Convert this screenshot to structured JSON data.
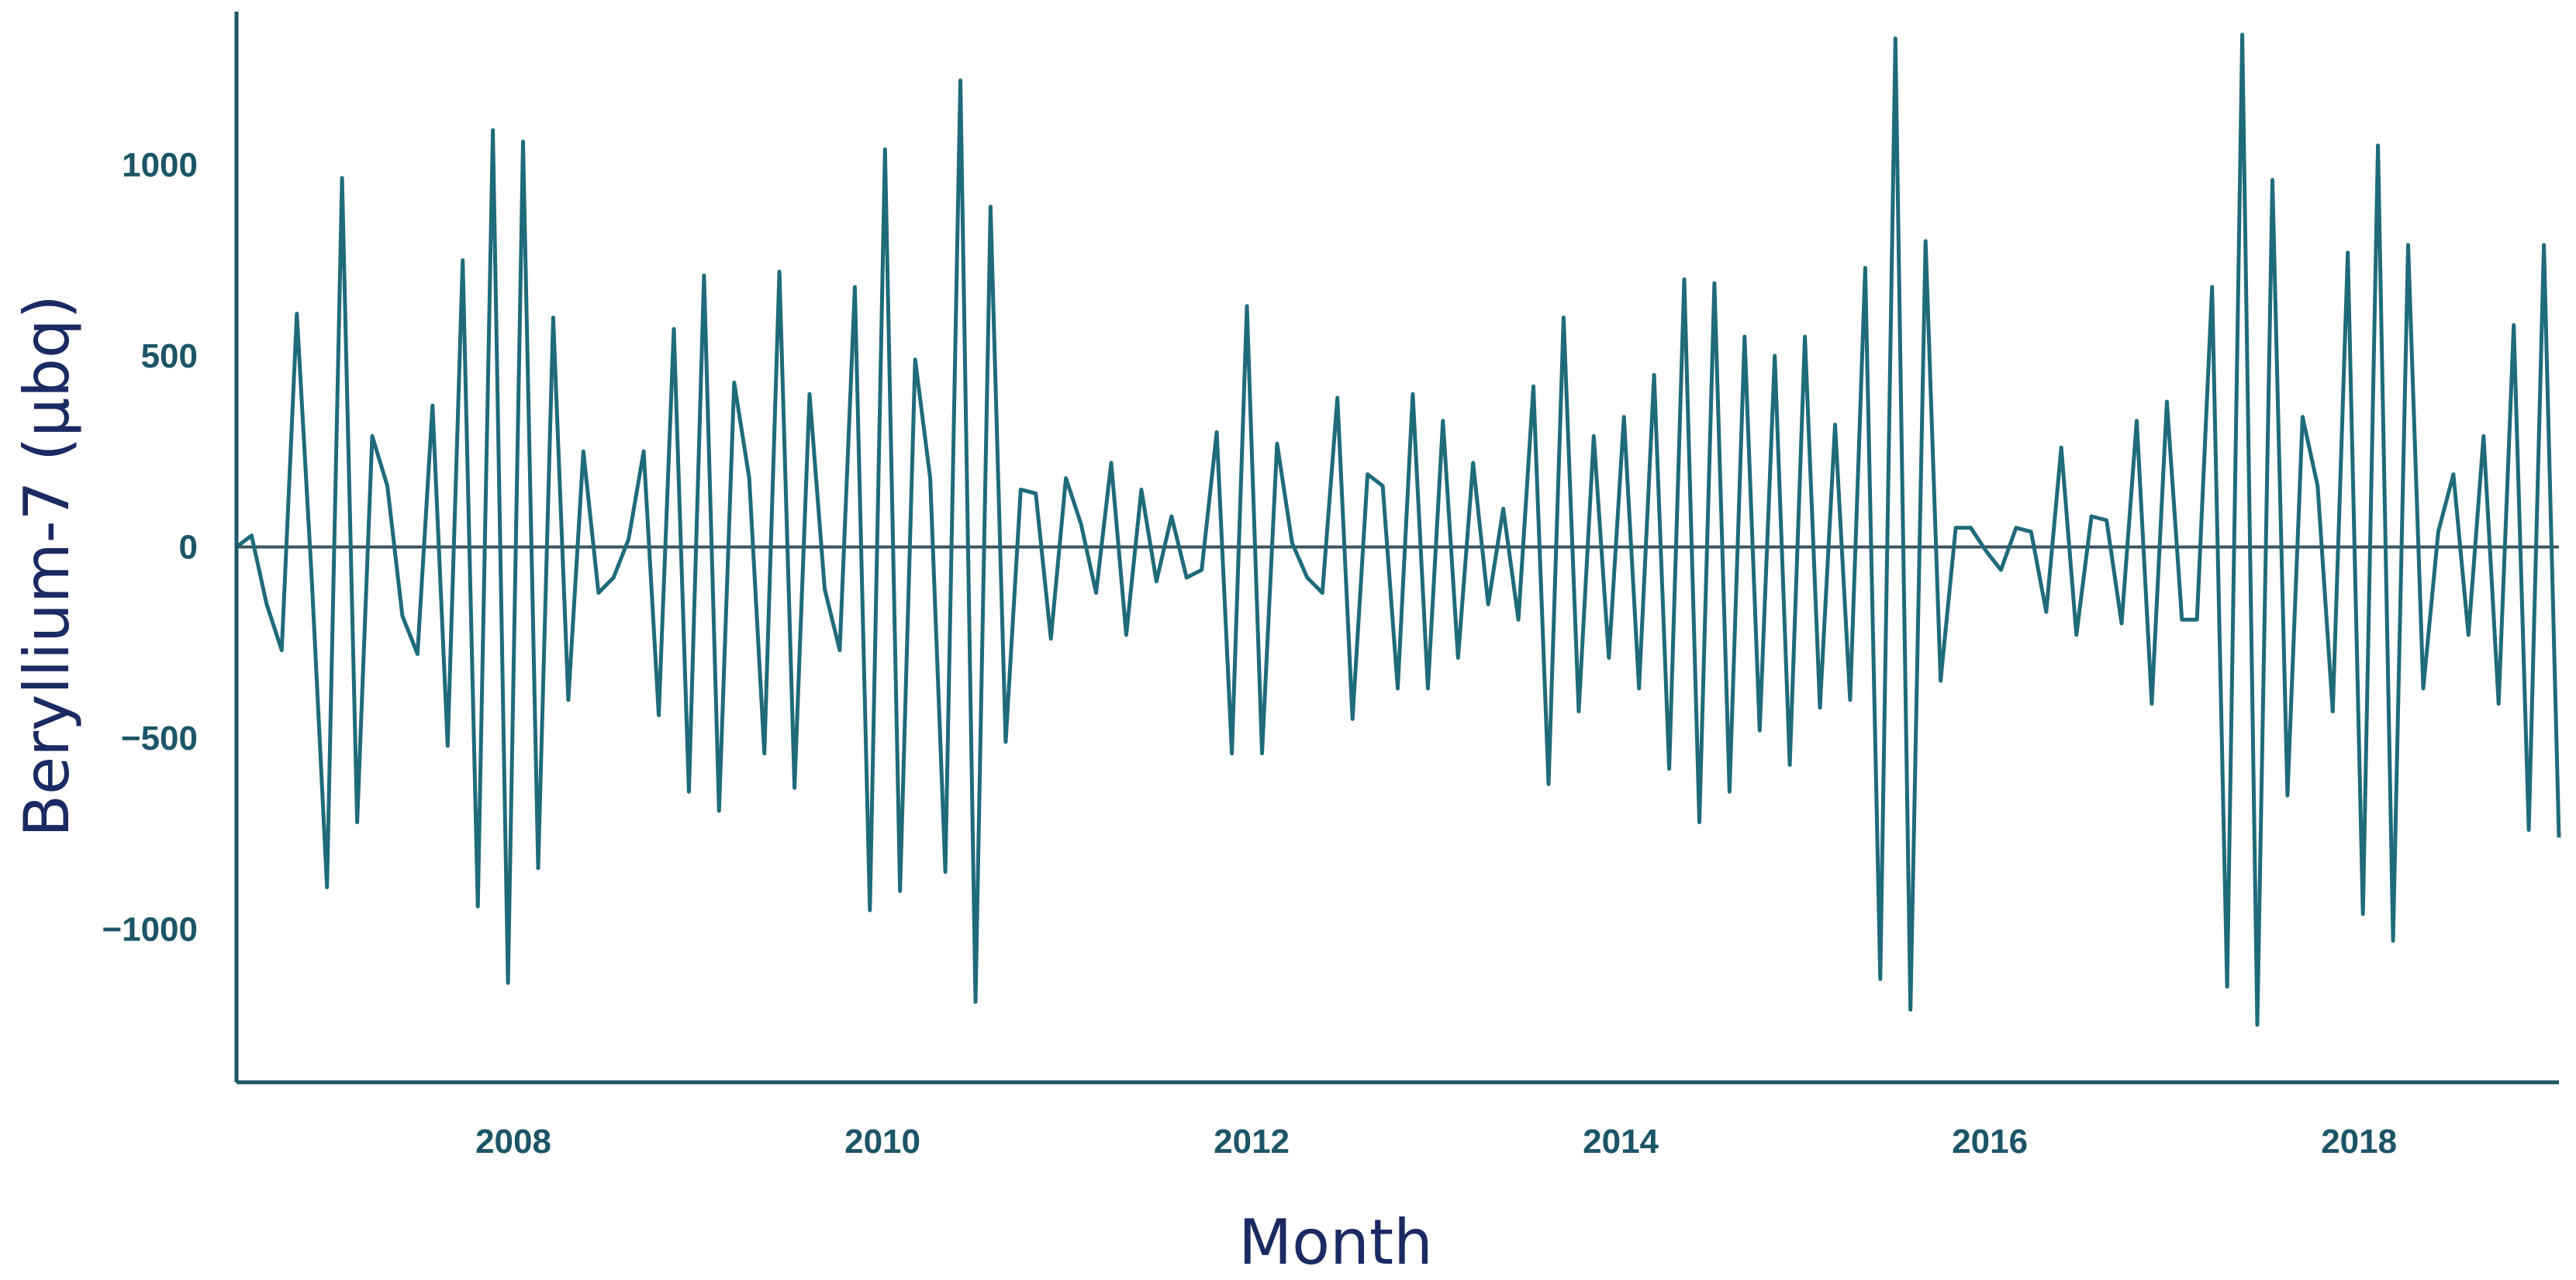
{
  "colors": {
    "line": "#1f6b7a",
    "axis": "#1c5566",
    "ticks": "#1c5566",
    "title": "#1c2a63",
    "zero_line": "#3d5560"
  },
  "chart_data": {
    "type": "line",
    "title": "",
    "xlabel": "Month",
    "ylabel": "Beryllium-7 (µbq)",
    "x_start": "2007-01",
    "x_end": "2019-08",
    "xlim": [
      "2007-01",
      "2019-08"
    ],
    "ylim": [
      -1400,
      1400
    ],
    "x_ticks": [
      "2008",
      "2010",
      "2012",
      "2014",
      "2016",
      "2018"
    ],
    "y_ticks": [
      "1000",
      "500",
      "0",
      "−500",
      "−1000"
    ],
    "y_tick_values": [
      1000,
      500,
      0,
      -500,
      -1000
    ],
    "reference_line": 0,
    "grid": false,
    "legend": "none",
    "series": [
      {
        "values": [
          0,
          30,
          -150,
          -270,
          610,
          -90,
          -890,
          965,
          -720,
          290,
          160,
          -180,
          -280,
          370,
          -520,
          750,
          -940,
          1090,
          -1140,
          1060,
          -840,
          600,
          -400,
          250,
          -120,
          -80,
          20,
          250,
          -440,
          570,
          -640,
          710,
          -690,
          430,
          180,
          -540,
          720,
          -630,
          400,
          -110,
          -270,
          680,
          -950,
          1040,
          -900,
          490,
          180,
          -850,
          1220,
          -1190,
          890,
          -510,
          150,
          140,
          -240,
          180,
          60,
          -120,
          220,
          -230,
          150,
          -90,
          80,
          -80,
          -60,
          300,
          -540,
          630,
          -540,
          270,
          10,
          -80,
          -120,
          390,
          -450,
          190,
          160,
          -370,
          400,
          -370,
          330,
          -290,
          220,
          -150,
          100,
          -190,
          420,
          -620,
          600,
          -430,
          290,
          -290,
          340,
          -370,
          450,
          -580,
          700,
          -720,
          690,
          -640,
          550,
          -480,
          500,
          -570,
          550,
          -420,
          320,
          -400,
          730,
          -1130,
          1330,
          -1210,
          800,
          -350,
          50,
          50,
          -10,
          -60,
          50,
          40,
          -170,
          260,
          -230,
          80,
          70,
          -200,
          330,
          -410,
          380,
          -190,
          -190,
          680,
          -1150,
          1340,
          -1250,
          960,
          -650,
          340,
          160,
          -430,
          770,
          -960,
          1050,
          -1030,
          790,
          -370,
          40,
          190,
          -230,
          290,
          -410,
          580,
          -740,
          790,
          -760
        ]
      }
    ]
  }
}
